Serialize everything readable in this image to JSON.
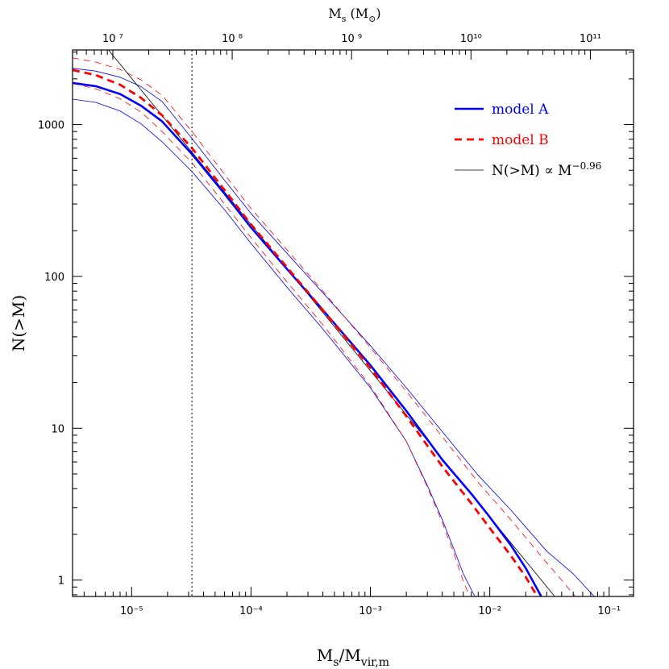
{
  "chart_data": {
    "type": "line",
    "xlabel": "M_s/M_vir,m",
    "ylabel": "N(>M)",
    "top_xlabel": "M_s (M_⊙)",
    "x_scale": "log",
    "y_scale": "log",
    "xlim": [
      3.2e-06,
      0.16
    ],
    "ylim": [
      0.78,
      3100
    ],
    "top_xlim_Msun": [
      4600000.0,
      230000000000.0
    ],
    "x_ticks": [
      {
        "value": 1e-05,
        "label": "10⁻⁵"
      },
      {
        "value": 0.0001,
        "label": "10⁻⁴"
      },
      {
        "value": 0.001,
        "label": "10⁻³"
      },
      {
        "value": 0.01,
        "label": "10⁻²"
      },
      {
        "value": 0.1,
        "label": "10⁻¹"
      }
    ],
    "y_ticks": [
      {
        "value": 1,
        "label": "1"
      },
      {
        "value": 10,
        "label": "10"
      },
      {
        "value": 100,
        "label": "100"
      },
      {
        "value": 1000,
        "label": "1000"
      }
    ],
    "top_ticks": [
      {
        "value": 10000000.0,
        "label": "10 ⁷"
      },
      {
        "value": 100000000.0,
        "label": "10 ⁸"
      },
      {
        "value": 1000000000.0,
        "label": "10 ⁹"
      },
      {
        "value": 10000000000.0,
        "label": "10¹⁰"
      },
      {
        "value": 100000000000.0,
        "label": "10¹¹"
      }
    ],
    "vline_x": 3.2e-05,
    "legend_position": "top-right",
    "legend": [
      {
        "label": "model A",
        "color": "#0000ff",
        "style": "solid-thick",
        "series_ref": "model-a"
      },
      {
        "label": "model B",
        "color": "#ff0000",
        "style": "dashed-thick",
        "series_ref": "model-b"
      },
      {
        "label": "N(>M) ∝ M",
        "exponent": "−0.96",
        "color": "#000000",
        "style": "solid-thin",
        "series_ref": "power-law"
      }
    ],
    "series": [
      {
        "id": "model-a",
        "name": "model A",
        "color": "#0000ff",
        "style": "solid-thick",
        "points": [
          [
            3.2e-06,
            1880
          ],
          [
            5e-06,
            1790
          ],
          [
            8e-06,
            1590
          ],
          [
            1.2e-05,
            1330
          ],
          [
            1.8e-05,
            1050
          ],
          [
            3.2e-05,
            640
          ],
          [
            6e-05,
            350
          ],
          [
            0.0001,
            210
          ],
          [
            0.0002,
            112
          ],
          [
            0.0004,
            60
          ],
          [
            0.001,
            26
          ],
          [
            0.002,
            13
          ],
          [
            0.004,
            6.2
          ],
          [
            0.007,
            3.7
          ],
          [
            0.01,
            2.6
          ],
          [
            0.015,
            1.7
          ],
          [
            0.02,
            1.2
          ],
          [
            0.027,
            0.78
          ]
        ]
      },
      {
        "id": "model-a-upper",
        "color": "#0000ff",
        "style": "solid-thin",
        "points": [
          [
            3.2e-06,
            2350
          ],
          [
            5e-06,
            2250
          ],
          [
            8e-06,
            2050
          ],
          [
            1.2e-05,
            1780
          ],
          [
            1.8e-05,
            1420
          ],
          [
            3.2e-05,
            810
          ],
          [
            6e-05,
            430
          ],
          [
            0.0001,
            260
          ],
          [
            0.0002,
            142
          ],
          [
            0.0004,
            78
          ],
          [
            0.001,
            35
          ],
          [
            0.002,
            18.5
          ],
          [
            0.004,
            9.5
          ],
          [
            0.008,
            4.9
          ],
          [
            0.015,
            2.9
          ],
          [
            0.03,
            1.55
          ],
          [
            0.05,
            1.1
          ],
          [
            0.075,
            0.78
          ]
        ]
      },
      {
        "id": "model-a-lower",
        "color": "#0000ff",
        "style": "solid-thin",
        "points": [
          [
            3.2e-06,
            1470
          ],
          [
            5e-06,
            1400
          ],
          [
            8e-06,
            1230
          ],
          [
            1.2e-05,
            1010
          ],
          [
            1.8e-05,
            770
          ],
          [
            3.2e-05,
            490
          ],
          [
            6e-05,
            275
          ],
          [
            0.0001,
            165
          ],
          [
            0.0002,
            85
          ],
          [
            0.0004,
            45
          ],
          [
            0.001,
            18.5
          ],
          [
            0.002,
            8.2
          ],
          [
            0.003,
            4.2
          ],
          [
            0.004,
            2.5
          ],
          [
            0.005,
            1.6
          ],
          [
            0.006,
            1.1
          ],
          [
            0.0075,
            0.78
          ]
        ]
      },
      {
        "id": "model-b",
        "name": "model B",
        "color": "#ff0000",
        "style": "dashed-thick",
        "points": [
          [
            3.2e-06,
            2290
          ],
          [
            5e-06,
            2120
          ],
          [
            8e-06,
            1830
          ],
          [
            1.2e-05,
            1500
          ],
          [
            1.8e-05,
            1150
          ],
          [
            3.2e-05,
            700
          ],
          [
            6e-05,
            370
          ],
          [
            0.0001,
            220
          ],
          [
            0.0002,
            115
          ],
          [
            0.0004,
            60
          ],
          [
            0.001,
            25
          ],
          [
            0.002,
            12
          ],
          [
            0.004,
            5.6
          ],
          [
            0.007,
            3.2
          ],
          [
            0.01,
            2.2
          ],
          [
            0.015,
            1.45
          ],
          [
            0.02,
            1.05
          ],
          [
            0.025,
            0.78
          ]
        ]
      },
      {
        "id": "model-b-upper",
        "color": "#ff0000",
        "style": "dashed-thin",
        "points": [
          [
            3.2e-06,
            2750
          ],
          [
            5e-06,
            2580
          ],
          [
            8e-06,
            2310
          ],
          [
            1.2e-05,
            1970
          ],
          [
            1.8e-05,
            1560
          ],
          [
            3.2e-05,
            900
          ],
          [
            6e-05,
            470
          ],
          [
            0.0001,
            280
          ],
          [
            0.0002,
            150
          ],
          [
            0.0004,
            80
          ],
          [
            0.001,
            34
          ],
          [
            0.002,
            17.5
          ],
          [
            0.004,
            8.8
          ],
          [
            0.008,
            4.4
          ],
          [
            0.015,
            2.5
          ],
          [
            0.03,
            1.3
          ],
          [
            0.04,
            1.0
          ],
          [
            0.052,
            0.78
          ]
        ]
      },
      {
        "id": "model-b-lower",
        "color": "#ff0000",
        "style": "dashed-thin",
        "points": [
          [
            3.2e-06,
            1870
          ],
          [
            5e-06,
            1720
          ],
          [
            8e-06,
            1480
          ],
          [
            1.2e-05,
            1210
          ],
          [
            1.8e-05,
            900
          ],
          [
            3.2e-05,
            560
          ],
          [
            6e-05,
            300
          ],
          [
            0.0001,
            180
          ],
          [
            0.0002,
            92
          ],
          [
            0.0004,
            48
          ],
          [
            0.001,
            19
          ],
          [
            0.002,
            8.2
          ],
          [
            0.003,
            4.1
          ],
          [
            0.004,
            2.4
          ],
          [
            0.005,
            1.5
          ],
          [
            0.006,
            0.98
          ],
          [
            0.0068,
            0.78
          ]
        ]
      },
      {
        "id": "power-law",
        "name": "N(>M) ∝ M^−0.96",
        "color": "#000000",
        "style": "solid-thin",
        "points": [
          [
            6.4e-06,
            3100
          ],
          [
            0.035,
            0.78
          ]
        ]
      }
    ]
  }
}
